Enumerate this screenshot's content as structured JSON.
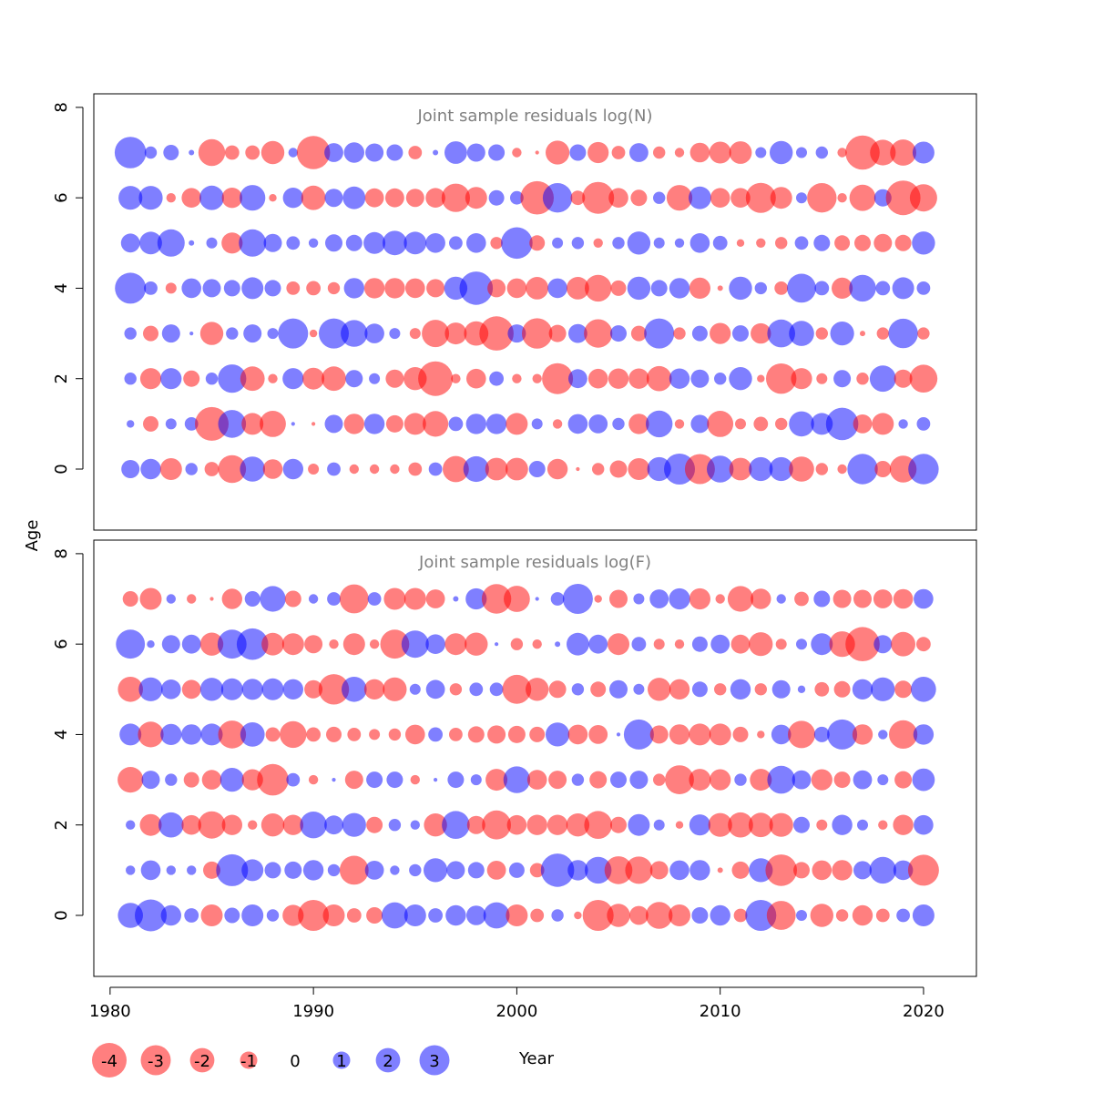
{
  "chart_data": {
    "type": "scatter",
    "xlabel": "Year",
    "ylabel": "Age",
    "xlim": [
      1979.2,
      2022.6
    ],
    "ylim": [
      -1.35,
      8.3
    ],
    "x_ticks": [
      1980,
      1990,
      2000,
      2010,
      2020
    ],
    "y_ticks": [
      0,
      2,
      4,
      6,
      8
    ],
    "positive_color": "#0000ff",
    "negative_color": "#ff0000",
    "years": [
      1981,
      1982,
      1983,
      1984,
      1985,
      1986,
      1987,
      1988,
      1989,
      1990,
      1991,
      1992,
      1993,
      1994,
      1995,
      1996,
      1997,
      1998,
      1999,
      2000,
      2001,
      2002,
      2003,
      2004,
      2005,
      2006,
      2007,
      2008,
      2009,
      2010,
      2011,
      2012,
      2013,
      2014,
      2015,
      2016,
      2017,
      2018,
      2019,
      2020
    ],
    "ages": [
      0,
      1,
      2,
      3,
      4,
      5,
      6,
      7
    ],
    "panels": [
      {
        "title": "Joint sample residuals log(N)",
        "residuals": {
          "7": [
            3.3,
            0.5,
            0.8,
            0.1,
            -2.4,
            -0.7,
            -0.7,
            -1.8,
            0.3,
            -3.7,
            1.2,
            1.4,
            1.1,
            0.9,
            -0.6,
            0.1,
            1.7,
            1.1,
            0.9,
            -0.3,
            -0.05,
            -1.9,
            0.9,
            -1.5,
            -0.6,
            1.2,
            -0.5,
            -0.3,
            -1.3,
            -1.6,
            -1.7,
            0.4,
            1.8,
            0.4,
            0.5,
            -0.3,
            -3.9,
            -2.2,
            -2.3,
            1.6
          ],
          "6": [
            1.9,
            1.9,
            -0.3,
            -1.3,
            2.0,
            -1.4,
            2.2,
            -0.2,
            1.4,
            -2.0,
            1.1,
            1.7,
            -1.2,
            -1.2,
            -1.1,
            -1.3,
            -2.7,
            -1.6,
            0.8,
            0.6,
            -3.7,
            2.9,
            -0.7,
            -3.4,
            -1.3,
            -0.9,
            0.5,
            -2.2,
            1.7,
            -1.3,
            -1.3,
            -3.0,
            -1.6,
            0.4,
            -2.9,
            -0.3,
            -2.3,
            1.0,
            -4.0,
            -2.5
          ],
          "5": [
            1.2,
            1.7,
            2.5,
            0.1,
            0.4,
            -1.5,
            2.5,
            1.1,
            0.6,
            0.3,
            1.0,
            0.9,
            1.6,
            2.0,
            1.7,
            1.3,
            0.6,
            1.3,
            -0.5,
            3.3,
            -0.8,
            0.4,
            0.5,
            -0.3,
            0.5,
            1.8,
            0.4,
            0.3,
            1.3,
            0.7,
            -0.2,
            -0.3,
            -0.5,
            0.6,
            0.9,
            -0.8,
            -0.9,
            -1.1,
            -0.9,
            1.8
          ],
          "4": [
            3.2,
            0.6,
            -0.4,
            1.3,
            1.1,
            0.9,
            1.6,
            0.9,
            -0.6,
            -0.7,
            -0.5,
            1.4,
            -1.4,
            -1.4,
            -1.3,
            -1.1,
            1.8,
            3.7,
            -1.1,
            -1.3,
            -1.7,
            1.3,
            -1.7,
            -2.4,
            -0.8,
            1.8,
            0.9,
            1.4,
            -1.5,
            -0.1,
            1.8,
            0.5,
            -0.6,
            2.8,
            0.7,
            -1.5,
            2.4,
            0.7,
            1.6,
            0.6
          ],
          "3": [
            0.5,
            -0.8,
            1.1,
            0.05,
            -1.8,
            0.5,
            1.1,
            0.4,
            3.0,
            -0.2,
            3.0,
            2.4,
            1.3,
            0.4,
            -0.4,
            -2.5,
            -1.6,
            -2.0,
            -3.9,
            1.1,
            -3.1,
            -1.0,
            1.2,
            -2.7,
            0.9,
            -0.8,
            3.0,
            -0.5,
            0.8,
            -1.5,
            0.9,
            -1.4,
            2.6,
            2.1,
            -0.5,
            1.9,
            -0.1,
            -0.5,
            2.9,
            -0.5
          ],
          "2": [
            0.5,
            -1.5,
            1.5,
            -0.9,
            0.5,
            2.7,
            -2.0,
            -0.3,
            1.5,
            -1.6,
            -2.0,
            1.0,
            0.4,
            -1.1,
            -1.8,
            -4.0,
            -0.3,
            -1.3,
            0.7,
            -0.3,
            -0.3,
            -3.2,
            1.2,
            -1.3,
            -1.4,
            -1.4,
            -2.1,
            1.4,
            1.1,
            0.5,
            1.8,
            -0.2,
            -3.1,
            -1.5,
            -0.4,
            1.0,
            -0.5,
            2.3,
            -1.1,
            -2.6
          ],
          "1": [
            0.2,
            -0.8,
            0.4,
            0.6,
            -3.8,
            2.6,
            -1.6,
            -2.3,
            0.05,
            -0.05,
            1.1,
            -1.4,
            1.4,
            -1.0,
            -1.6,
            -2.2,
            0.7,
            1.4,
            1.4,
            -1.6,
            0.4,
            -0.3,
            1.3,
            1.2,
            0.5,
            -1.4,
            2.4,
            -0.3,
            1.1,
            -2.3,
            -0.4,
            -0.7,
            -0.5,
            2.1,
            1.6,
            3.5,
            -1.2,
            -1.6,
            0.3,
            0.6
          ],
          "0": [
            1.1,
            1.4,
            -1.6,
            0.5,
            -0.7,
            -2.6,
            2.1,
            -1.3,
            1.4,
            -0.4,
            0.6,
            -0.3,
            -0.3,
            -0.3,
            -0.6,
            0.6,
            -2.3,
            2.2,
            -1.7,
            -1.7,
            0.9,
            -1.4,
            -0.05,
            -0.5,
            -1.0,
            -1.6,
            1.9,
            3.2,
            -3.0,
            2.4,
            -1.7,
            1.9,
            1.9,
            -2.1,
            -0.5,
            -0.3,
            3.1,
            -0.9,
            -2.4,
            3.1
          ]
        }
      },
      {
        "title": "Joint sample residuals log(F)",
        "residuals": {
          "7": [
            -0.8,
            -1.6,
            0.3,
            -0.3,
            -0.05,
            -1.4,
            0.8,
            2.2,
            -0.9,
            0.3,
            0.6,
            -2.8,
            0.6,
            -1.6,
            -1.6,
            -1.2,
            0.1,
            1.5,
            -2.9,
            -2.3,
            0.05,
            0.6,
            3.0,
            -0.2,
            -1.1,
            0.4,
            1.2,
            1.5,
            -1.5,
            -0.3,
            -2.2,
            -1.4,
            0.3,
            -0.7,
            0.9,
            -1.1,
            -1.1,
            -1.2,
            -1.3,
            1.3
          ],
          "6": [
            2.8,
            0.2,
            1.1,
            1.2,
            -1.8,
            2.8,
            3.3,
            -1.7,
            -1.6,
            -1.1,
            -0.3,
            -1.6,
            -0.3,
            -2.8,
            2.5,
            1.3,
            -1.6,
            -1.8,
            0.05,
            -0.5,
            -0.3,
            0.1,
            1.7,
            1.2,
            -1.6,
            0.7,
            -0.4,
            -0.3,
            0.8,
            1.2,
            -1.2,
            -1.9,
            -0.4,
            0.4,
            1.6,
            -2.2,
            -3.9,
            1.1,
            -2.0,
            -0.7
          ],
          "5": [
            -2.1,
            1.9,
            1.3,
            -1.2,
            1.8,
            1.6,
            1.5,
            1.6,
            1.4,
            -1.1,
            -3.1,
            2.1,
            -1.4,
            -1.9,
            0.4,
            1.2,
            -0.5,
            0.6,
            0.6,
            -2.8,
            -1.8,
            -1.0,
            0.5,
            -0.8,
            1.1,
            0.4,
            -1.8,
            -1.4,
            0.8,
            -0.5,
            1.4,
            -0.5,
            1.1,
            0.2,
            -0.7,
            -0.9,
            1.4,
            1.9,
            -1.0,
            2.1
          ],
          "4": [
            1.6,
            -2.2,
            1.5,
            1.4,
            1.6,
            -2.6,
            2.0,
            -0.7,
            -2.4,
            -0.7,
            -0.8,
            -0.6,
            -0.4,
            -0.5,
            -1.3,
            0.7,
            -0.6,
            -0.9,
            -1.1,
            -1.0,
            -0.8,
            1.9,
            -1.3,
            -1.2,
            0.05,
            3.0,
            -1.1,
            -1.4,
            -1.6,
            -1.6,
            -0.8,
            -0.2,
            1.3,
            -2.5,
            0.8,
            3.0,
            -1.4,
            0.3,
            -2.7,
            1.4
          ],
          "3": [
            -2.2,
            1.1,
            0.5,
            -0.8,
            -1.3,
            1.9,
            -1.5,
            -3.3,
            0.6,
            -0.3,
            0.05,
            -1.1,
            0.9,
            0.9,
            -0.3,
            0.05,
            0.9,
            0.4,
            -1.6,
            2.4,
            -1.3,
            -1.1,
            0.5,
            -1.0,
            0.9,
            1.1,
            -0.5,
            -2.8,
            -1.6,
            -1.5,
            0.5,
            -1.6,
            2.6,
            1.2,
            -1.5,
            -0.9,
            1.2,
            0.4,
            -1.0,
            1.7
          ],
          "2": [
            0.3,
            -1.6,
            2.1,
            -1.3,
            -2.5,
            -1.4,
            -0.3,
            -1.8,
            -1.4,
            2.4,
            1.2,
            1.9,
            -0.9,
            0.5,
            0.3,
            -1.8,
            2.6,
            -1.1,
            -2.8,
            -1.3,
            -1.4,
            -1.4,
            -1.8,
            -2.6,
            -0.9,
            1.6,
            0.4,
            -0.2,
            1.5,
            -1.9,
            -2.1,
            -2.0,
            -1.9,
            0.9,
            -0.4,
            1.4,
            0.4,
            -0.3,
            -1.4,
            1.3
          ],
          "1": [
            0.3,
            1.3,
            0.3,
            0.3,
            -1.0,
            3.4,
            1.6,
            0.9,
            1.0,
            1.4,
            0.5,
            -2.8,
            1.2,
            0.3,
            0.5,
            1.9,
            1.1,
            0.9,
            -1.2,
            0.8,
            -0.7,
            3.7,
            1.4,
            2.4,
            -2.6,
            -2.5,
            -1.1,
            1.3,
            1.4,
            -0.1,
            -1.0,
            1.9,
            -3.3,
            -0.9,
            -1.3,
            -1.4,
            1.1,
            2.4,
            1.3,
            -3.2
          ],
          "0": [
            2.1,
            3.4,
            1.4,
            0.7,
            -1.6,
            0.8,
            1.6,
            0.5,
            -1.5,
            -3.2,
            -1.6,
            -0.7,
            -0.9,
            2.3,
            1.6,
            0.7,
            1.4,
            1.3,
            2.3,
            -1.6,
            -0.6,
            0.5,
            -0.2,
            -3.2,
            -1.8,
            -1.2,
            -2.4,
            -1.6,
            0.9,
            1.4,
            -0.6,
            3.2,
            -2.8,
            0.4,
            -1.8,
            -0.5,
            -1.4,
            -0.6,
            0.6,
            1.6
          ]
        }
      }
    ],
    "legend": {
      "labels": [
        "-4",
        "-3",
        "-2",
        "-1",
        "0",
        "1",
        "2",
        "3"
      ],
      "values": [
        -4,
        -3,
        -2,
        -1,
        0,
        1,
        2,
        3
      ]
    }
  }
}
